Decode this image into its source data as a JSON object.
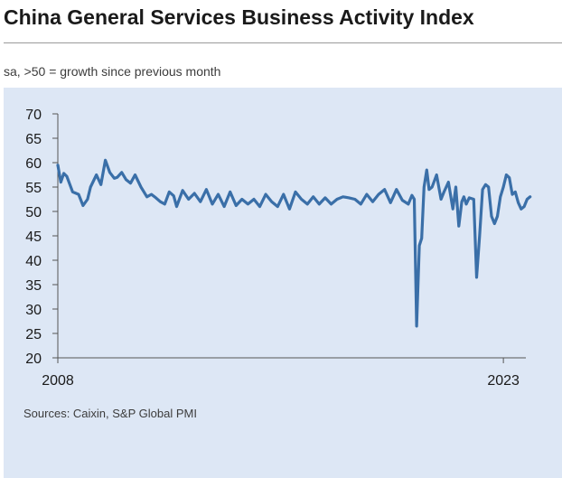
{
  "title": "China General Services Business Activity Index",
  "subtitle": "sa, >50 = growth since previous month",
  "source": "Sources: Caixin, S&P Global PMI",
  "colors": {
    "line": "#3a6fa8",
    "panel": "#dde7f5",
    "axis": "#555555"
  },
  "chart_data": {
    "type": "line",
    "title": "China General Services Business Activity Index",
    "xlabel": "",
    "ylabel": "",
    "ylim": [
      20,
      70
    ],
    "yticks": [
      20,
      25,
      30,
      35,
      40,
      45,
      50,
      55,
      60,
      65,
      70
    ],
    "xlim": [
      2008.0,
      2024.0
    ],
    "xticks": [
      {
        "value": 2008.0,
        "label": "2008"
      },
      {
        "value": 2023.0,
        "label": "2023"
      }
    ],
    "grid": false,
    "series": [
      {
        "name": "",
        "x": [
          2008.0,
          2008.1,
          2008.2,
          2008.3,
          2008.5,
          2008.7,
          2008.85,
          2009.0,
          2009.1,
          2009.3,
          2009.45,
          2009.6,
          2009.75,
          2009.9,
          2010.0,
          2010.15,
          2010.3,
          2010.45,
          2010.6,
          2010.8,
          2011.0,
          2011.15,
          2011.3,
          2011.45,
          2011.6,
          2011.75,
          2011.9,
          2012.0,
          2012.2,
          2012.4,
          2012.6,
          2012.8,
          2013.0,
          2013.2,
          2013.4,
          2013.6,
          2013.8,
          2014.0,
          2014.2,
          2014.4,
          2014.6,
          2014.8,
          2015.0,
          2015.2,
          2015.4,
          2015.6,
          2015.8,
          2016.0,
          2016.2,
          2016.4,
          2016.6,
          2016.8,
          2017.0,
          2017.2,
          2017.4,
          2017.6,
          2017.8,
          2018.0,
          2018.2,
          2018.4,
          2018.6,
          2018.8,
          2019.0,
          2019.2,
          2019.4,
          2019.6,
          2019.8,
          2019.92,
          2020.0,
          2020.08,
          2020.17,
          2020.25,
          2020.33,
          2020.42,
          2020.5,
          2020.6,
          2020.75,
          2020.9,
          2021.0,
          2021.15,
          2021.3,
          2021.4,
          2021.5,
          2021.6,
          2021.67,
          2021.75,
          2021.85,
          2022.0,
          2022.1,
          2022.2,
          2022.3,
          2022.4,
          2022.5,
          2022.6,
          2022.7,
          2022.8,
          2022.9,
          2023.0,
          2023.1,
          2023.2,
          2023.3,
          2023.4,
          2023.5,
          2023.6,
          2023.7,
          2023.8,
          2023.9
        ],
        "values": [
          59.5,
          56.0,
          57.8,
          57.2,
          54.0,
          53.5,
          51.2,
          52.5,
          55.0,
          57.5,
          55.5,
          60.5,
          58.0,
          56.8,
          57.0,
          58.0,
          56.5,
          55.8,
          57.5,
          55.0,
          53.0,
          53.5,
          52.8,
          52.0,
          51.5,
          54.0,
          53.2,
          51.0,
          54.3,
          52.5,
          53.7,
          52.0,
          54.5,
          51.5,
          53.5,
          51.0,
          54.0,
          51.2,
          52.5,
          51.5,
          52.5,
          51.0,
          53.5,
          52.0,
          51.0,
          53.5,
          50.5,
          54.0,
          52.5,
          51.5,
          53.0,
          51.5,
          52.8,
          51.5,
          52.5,
          53.0,
          52.8,
          52.5,
          51.5,
          53.5,
          52.0,
          53.5,
          54.5,
          51.8,
          54.5,
          52.3,
          51.5,
          53.3,
          52.5,
          26.5,
          43.0,
          44.5,
          55.0,
          58.5,
          54.5,
          55.0,
          57.5,
          52.5,
          54.0,
          56.0,
          50.5,
          55.0,
          47.0,
          52.0,
          53.0,
          51.5,
          52.8,
          52.5,
          36.5,
          45.0,
          54.5,
          55.5,
          55.0,
          49.0,
          47.5,
          49.0,
          53.0,
          55.0,
          57.5,
          56.9,
          53.5,
          54.0,
          51.8,
          50.5,
          51.0,
          52.5,
          53.0
        ]
      }
    ]
  }
}
